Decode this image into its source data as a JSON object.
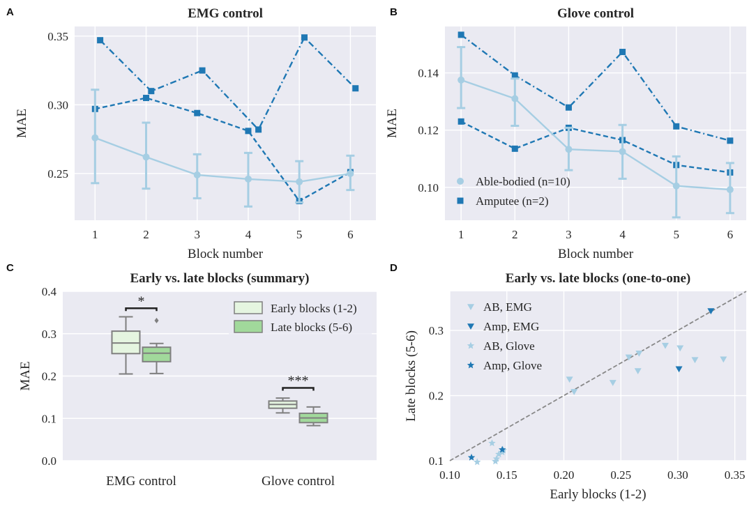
{
  "colors": {
    "able_bodied": "#a6cee3",
    "amputee": "#1f78b4",
    "background": "#eaeaf2",
    "grid": "#ffffff",
    "early_box": "#e5f5e0",
    "late_box": "#a1d99b",
    "box_edge": "#7f7f7f",
    "diagonal": "#888888"
  },
  "chart_data": [
    {
      "panel": "A",
      "type": "line",
      "title": "EMG control",
      "xlabel": "Block number",
      "ylabel": "MAE",
      "x": [
        1,
        2,
        3,
        4,
        5,
        6
      ],
      "xlim": [
        0.6,
        6.5
      ],
      "ylim": [
        0.216,
        0.357
      ],
      "yticks": [
        0.25,
        0.3,
        0.35
      ],
      "yticklabels": [
        "0.25",
        "0.30",
        "0.35"
      ],
      "grid": true,
      "series": [
        {
          "name": "Able-bodied (n=10)",
          "group": "able",
          "style": "solid",
          "marker": "circle",
          "x": [
            1,
            2,
            3,
            4,
            5,
            6
          ],
          "values": [
            0.276,
            0.262,
            0.249,
            0.246,
            0.244,
            0.25
          ],
          "err_low": [
            0.243,
            0.239,
            0.232,
            0.226,
            0.229,
            0.238
          ],
          "err_high": [
            0.311,
            0.287,
            0.264,
            0.265,
            0.259,
            0.263
          ]
        },
        {
          "name": "Amputee (n=2)",
          "group": "amp",
          "style": "dashed",
          "marker": "square",
          "x": [
            1,
            2,
            3,
            4,
            5,
            6
          ],
          "values": [
            0.297,
            0.305,
            0.294,
            0.281,
            0.23,
            0.251
          ]
        },
        {
          "name": "",
          "group": "amp",
          "style": "dashdot",
          "marker": "square",
          "x": [
            1.1,
            2.1,
            3.1,
            4.2,
            5.1,
            6.1
          ],
          "values": [
            0.347,
            0.31,
            0.325,
            0.282,
            0.349,
            0.312
          ]
        }
      ]
    },
    {
      "panel": "B",
      "type": "line",
      "title": "Glove control",
      "xlabel": "Block number",
      "ylabel": "MAE",
      "xlim": [
        0.7,
        6.3
      ],
      "ylim": [
        0.0885,
        0.1562
      ],
      "yticks": [
        0.1,
        0.12,
        0.14
      ],
      "yticklabels": [
        "0.10",
        "0.12",
        "0.14"
      ],
      "x": [
        1,
        2,
        3,
        4,
        5,
        6
      ],
      "grid": true,
      "legend": {
        "placement": "lower-left",
        "entries": [
          {
            "label": "Able-bodied (n=10)",
            "group": "able",
            "marker": "circle"
          },
          {
            "label": "Amputee (n=2)",
            "group": "amp",
            "marker": "square"
          }
        ]
      },
      "series": [
        {
          "name": "Able-bodied (n=10)",
          "group": "able",
          "style": "solid",
          "marker": "circle",
          "x": [
            1,
            2,
            3,
            4,
            5,
            6
          ],
          "values": [
            0.1375,
            0.131,
            0.1133,
            0.1125,
            0.1005,
            0.0992
          ],
          "err_low": [
            0.1277,
            0.1215,
            0.106,
            0.103,
            0.0895,
            0.091
          ],
          "err_high": [
            0.149,
            0.138,
            0.1208,
            0.1218,
            0.1108,
            0.1085
          ]
        },
        {
          "name": "Amputee (n=2)",
          "group": "amp",
          "style": "dashed",
          "marker": "square",
          "x": [
            1,
            2,
            3,
            4,
            5,
            6
          ],
          "values": [
            0.123,
            0.1135,
            0.1208,
            0.1165,
            0.1078,
            0.1052
          ]
        },
        {
          "name": "",
          "group": "amp",
          "style": "dashdot",
          "marker": "square",
          "x": [
            1,
            2,
            3,
            4,
            5,
            6
          ],
          "values": [
            0.1533,
            0.1391,
            0.1279,
            0.1473,
            0.1213,
            0.1163
          ]
        }
      ]
    },
    {
      "panel": "C",
      "type": "box",
      "title": "Early vs. late blocks (summary)",
      "ylabel": "MAE",
      "categories": [
        "EMG control",
        "Glove control"
      ],
      "ylim": [
        0.0,
        0.4
      ],
      "yticks": [
        0.0,
        0.1,
        0.2,
        0.3,
        0.4
      ],
      "yticklabels": [
        "0.0",
        "0.1",
        "0.2",
        "0.3",
        "0.4"
      ],
      "grid": true,
      "legend": {
        "placement": "top-right",
        "entries": [
          {
            "label": "Early blocks (1-2)",
            "group": "early"
          },
          {
            "label": "Late blocks (5-6)",
            "group": "late"
          }
        ]
      },
      "groups": [
        {
          "category": "EMG control",
          "series": "Early blocks (1-2)",
          "whisker_low": 0.205,
          "q1": 0.253,
          "median": 0.278,
          "q3": 0.306,
          "whisker_high": 0.34,
          "outliers": []
        },
        {
          "category": "EMG control",
          "series": "Late blocks (5-6)",
          "whisker_low": 0.206,
          "q1": 0.234,
          "median": 0.254,
          "q3": 0.268,
          "whisker_high": 0.277,
          "outliers": [
            0.331
          ]
        },
        {
          "category": "Glove control",
          "series": "Early blocks (1-2)",
          "whisker_low": 0.113,
          "q1": 0.124,
          "median": 0.133,
          "q3": 0.141,
          "whisker_high": 0.148,
          "outliers": []
        },
        {
          "category": "Glove control",
          "series": "Late blocks (5-6)",
          "whisker_low": 0.083,
          "q1": 0.09,
          "median": 0.101,
          "q3": 0.112,
          "whisker_high": 0.127,
          "outliers": []
        }
      ],
      "significance": [
        {
          "category": "EMG control",
          "label": "*",
          "y": 0.36
        },
        {
          "category": "Glove control",
          "label": "***",
          "y": 0.172
        }
      ]
    },
    {
      "panel": "D",
      "type": "scatter",
      "title": "Early vs. late blocks (one-to-one)",
      "xlabel": "Early blocks (1-2)",
      "ylabel": "Late blocks (5-6)",
      "xlim": [
        0.1,
        0.36
      ],
      "ylim": [
        0.1,
        0.36
      ],
      "xticks": [
        0.1,
        0.15,
        0.2,
        0.25,
        0.3,
        0.35
      ],
      "xticklabels": [
        "0.10",
        "0.15",
        "0.20",
        "0.25",
        "0.30",
        "0.35"
      ],
      "yticks": [
        0.1,
        0.2,
        0.3
      ],
      "yticklabels": [
        "0.1",
        "0.2",
        "0.3"
      ],
      "grid": true,
      "identity_line": true,
      "legend": {
        "placement": "top-left",
        "entries": [
          {
            "label": "AB, EMG",
            "group": "able",
            "marker": "triangle-down"
          },
          {
            "label": "Amp, EMG",
            "group": "amp",
            "marker": "triangle-down"
          },
          {
            "label": "AB, Glove",
            "group": "able",
            "marker": "star"
          },
          {
            "label": "Amp, Glove",
            "group": "amp",
            "marker": "star"
          }
        ]
      },
      "series": [
        {
          "name": "AB, EMG",
          "group": "able",
          "marker": "triangle-down",
          "x": [
            0.205,
            0.209,
            0.243,
            0.257,
            0.266,
            0.265,
            0.289,
            0.302,
            0.315,
            0.34
          ],
          "y": [
            0.225,
            0.206,
            0.22,
            0.259,
            0.265,
            0.238,
            0.277,
            0.273,
            0.255,
            0.256
          ]
        },
        {
          "name": "Amp, EMG",
          "group": "amp",
          "marker": "triangle-down",
          "x": [
            0.301,
            0.329
          ],
          "y": [
            0.241,
            0.33
          ]
        },
        {
          "name": "AB, Glove",
          "group": "able",
          "marker": "star",
          "x": [
            0.137,
            0.141,
            0.143,
            0.147,
            0.146,
            0.14,
            0.124
          ],
          "y": [
            0.127,
            0.103,
            0.11,
            0.116,
            0.113,
            0.099,
            0.098
          ]
        },
        {
          "name": "Amp, Glove",
          "group": "amp",
          "marker": "star",
          "x": [
            0.119,
            0.146
          ],
          "y": [
            0.105,
            0.117
          ]
        }
      ]
    }
  ]
}
